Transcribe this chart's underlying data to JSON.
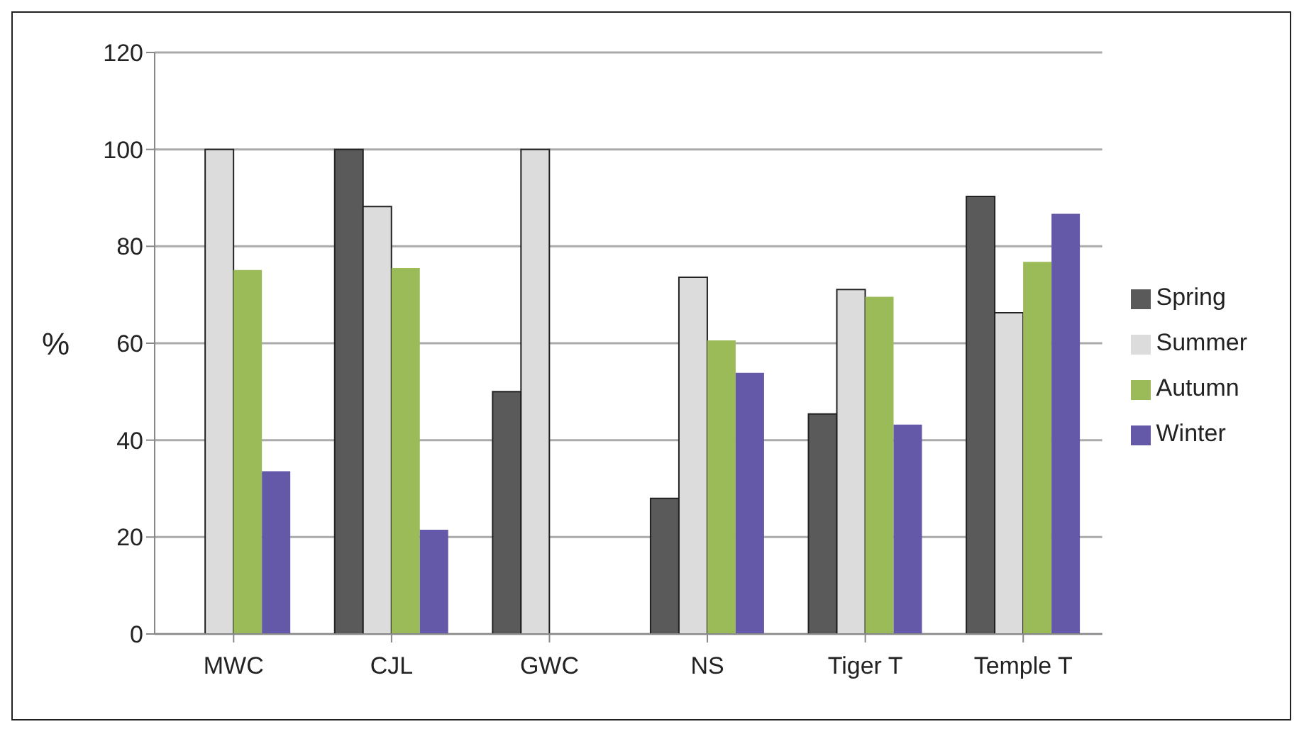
{
  "chart_data": {
    "type": "bar",
    "ylabel": "%",
    "categories": [
      "MWC",
      "CJL",
      "GWC",
      "NS",
      "Tiger T",
      "Temple T"
    ],
    "series": [
      {
        "name": "Spring",
        "color": "#5a5a5a",
        "values": [
          0,
          100,
          50,
          28,
          45.4,
          90.3
        ]
      },
      {
        "name": "Summer",
        "color": "#dcdcdc",
        "values": [
          100,
          88.2,
          100,
          73.6,
          71.1,
          66.3
        ]
      },
      {
        "name": "Autumn",
        "color": "#9bbb59",
        "values": [
          75.1,
          75.5,
          0,
          60.6,
          69.6,
          76.8
        ]
      },
      {
        "name": "Winter",
        "color": "#6458a8",
        "values": [
          33.6,
          21.5,
          0,
          53.9,
          43.2,
          86.7
        ]
      }
    ],
    "ylim": [
      0,
      120
    ],
    "yticks": [
      0,
      20,
      40,
      60,
      80,
      100,
      120
    ],
    "grid": "y",
    "legend": "right"
  }
}
